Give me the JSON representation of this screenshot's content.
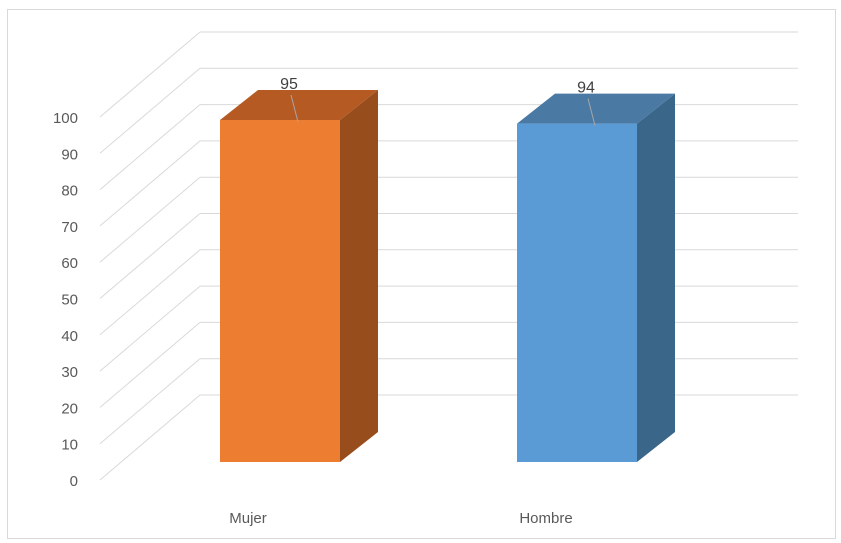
{
  "chart_data": {
    "type": "bar",
    "style": "3d-column",
    "categories": [
      "Mujer",
      "Hombre"
    ],
    "values": [
      95,
      94
    ],
    "data_labels": [
      "95",
      "94"
    ],
    "colors": {
      "Mujer": {
        "front": "#ed7d31",
        "side": "#984d1c",
        "top": "#b55a22"
      },
      "Hombre": {
        "front": "#5b9bd5",
        "side": "#3a6689",
        "top": "#4a79a4"
      }
    },
    "ylim": [
      0,
      100
    ],
    "yticks": [
      "0",
      "10",
      "20",
      "30",
      "40",
      "50",
      "60",
      "70",
      "80",
      "90",
      "100"
    ],
    "grid": true,
    "legend": "none"
  }
}
